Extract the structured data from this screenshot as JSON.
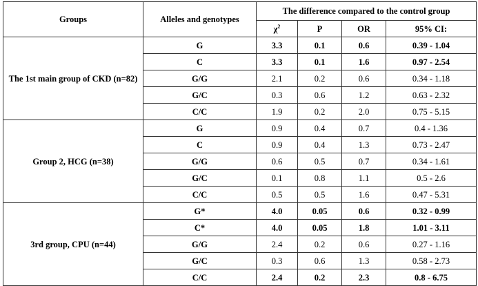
{
  "headers": {
    "groups": "Groups",
    "alleles": "Alleles and genotypes",
    "difference": "The difference compared to the control group",
    "chi": "χ",
    "chi_sup": "2",
    "p": "P",
    "or": "OR",
    "ci": "95% CI:"
  },
  "groups": [
    {
      "label": "The 1st main group of CKD (n=82)",
      "rows": [
        {
          "allele": "G",
          "chi": "3.3",
          "p": "0.1",
          "or": "0.6",
          "ci": "0.39 - 1.04",
          "bold": true
        },
        {
          "allele": "C",
          "chi": "3.3",
          "p": "0.1",
          "or": "1.6",
          "ci": "0.97 - 2.54",
          "bold": true
        },
        {
          "allele": "G/G",
          "chi": "2.1",
          "p": "0.2",
          "or": "0.6",
          "ci": "0.34 - 1.18",
          "bold": false
        },
        {
          "allele": "G/C",
          "chi": "0.3",
          "p": "0.6",
          "or": "1.2",
          "ci": "0.63 - 2.32",
          "bold": false
        },
        {
          "allele": "C/C",
          "chi": "1.9",
          "p": "0.2",
          "or": "2.0",
          "ci": "0.75 - 5.15",
          "bold": false
        }
      ]
    },
    {
      "label": "Group 2, HCG (n=38)",
      "rows": [
        {
          "allele": "G",
          "chi": "0.9",
          "p": "0.4",
          "or": "0.7",
          "ci": "0.4 - 1.36",
          "bold": false
        },
        {
          "allele": "C",
          "chi": "0.9",
          "p": "0.4",
          "or": "1.3",
          "ci": "0.73 - 2.47",
          "bold": false
        },
        {
          "allele": "G/G",
          "chi": "0.6",
          "p": "0.5",
          "or": "0.7",
          "ci": "0.34 - 1.61",
          "bold": false
        },
        {
          "allele": "G/C",
          "chi": "0.1",
          "p": "0.8",
          "or": "1.1",
          "ci": "0.5 - 2.6",
          "bold": false
        },
        {
          "allele": "C/C",
          "chi": "0.5",
          "p": "0.5",
          "or": "1.6",
          "ci": "0.47 - 5.31",
          "bold": false
        }
      ]
    },
    {
      "label": "3rd group, CPU (n=44)",
      "rows": [
        {
          "allele": "G*",
          "chi": "4.0",
          "p": "0.05",
          "or": "0.6",
          "ci": "0.32 - 0.99",
          "bold": true
        },
        {
          "allele": "C*",
          "chi": "4.0",
          "p": "0.05",
          "or": "1.8",
          "ci": "1.01 - 3.11",
          "bold": true
        },
        {
          "allele": "G/G",
          "chi": "2.4",
          "p": "0.2",
          "or": "0.6",
          "ci": "0.27 - 1.16",
          "bold": false
        },
        {
          "allele": "G/C",
          "chi": "0.3",
          "p": "0.6",
          "or": "1.3",
          "ci": "0.58 - 2.73",
          "bold": false
        },
        {
          "allele": "C/C",
          "chi": "2.4",
          "p": "0.2",
          "or": "2.3",
          "ci": "0.8 - 6.75",
          "bold": true
        }
      ]
    }
  ]
}
